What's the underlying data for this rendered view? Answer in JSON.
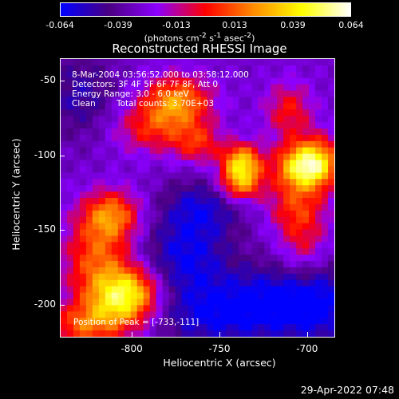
{
  "colorbar": {
    "ticks": [
      "-0.064",
      "-0.039",
      "-0.013",
      "0.013",
      "0.039",
      "0.064"
    ],
    "unit_text": "(photons cm",
    "unit_sup1": "-2",
    "unit_mid": " s",
    "unit_sup2": "-1",
    "unit_end": " asec",
    "unit_sup3": "-2",
    "unit_close": ")",
    "colors": [
      "#0000ff",
      "#4b0082",
      "#8b00ff",
      "#ff0000",
      "#ff8c00",
      "#ffff00",
      "#ffffff"
    ]
  },
  "annotations": {
    "time": "8-Mar-2004 03:56:52.000 to 03:58:12.000",
    "detectors": "Detectors: 3F 4F 5F 6F 7F 8F, Att 0",
    "energy": "Energy Range: 3.0 - 6.0 keV",
    "method": "Clean",
    "counts": "Total counts: 3.70E+03",
    "peak": "Position of Peak = [-733,-111]"
  },
  "footer": {
    "timestamp": "29-Apr-2022 07:48"
  },
  "chart_data": {
    "type": "heatmap",
    "title": "Reconstructed RHESSI Image",
    "xlabel": "Heliocentric X (arcsec)",
    "ylabel": "Heliocentric Y (arcsec)",
    "xlim": [
      -841,
      -684
    ],
    "ylim": [
      -222,
      -35
    ],
    "x_ticks": [
      -800,
      -750,
      -700
    ],
    "y_ticks": [
      -50,
      -100,
      -150,
      -200
    ],
    "zlim": [
      -0.064,
      0.064
    ],
    "peak": [
      -733,
      -111
    ],
    "sources": [
      {
        "x": -774,
        "y": -63,
        "amp": 0.05,
        "sx": 14,
        "sy": 12
      },
      {
        "x": -789,
        "y": -82,
        "amp": 0.03,
        "sx": 16,
        "sy": 12
      },
      {
        "x": -737,
        "y": -105,
        "amp": 0.064,
        "sx": 8,
        "sy": 9
      },
      {
        "x": -738,
        "y": -120,
        "amp": 0.045,
        "sx": 9,
        "sy": 8
      },
      {
        "x": -705,
        "y": -108,
        "amp": 0.058,
        "sx": 10,
        "sy": 11
      },
      {
        "x": -693,
        "y": -105,
        "amp": 0.055,
        "sx": 9,
        "sy": 12
      },
      {
        "x": -710,
        "y": -70,
        "amp": 0.03,
        "sx": 10,
        "sy": 14
      },
      {
        "x": -706,
        "y": -135,
        "amp": 0.03,
        "sx": 12,
        "sy": 12
      },
      {
        "x": -702,
        "y": -160,
        "amp": 0.025,
        "sx": 10,
        "sy": 15
      },
      {
        "x": -762,
        "y": -92,
        "amp": 0.03,
        "sx": 10,
        "sy": 10
      },
      {
        "x": -812,
        "y": -140,
        "amp": 0.045,
        "sx": 12,
        "sy": 12
      },
      {
        "x": -820,
        "y": -170,
        "amp": 0.04,
        "sx": 14,
        "sy": 20
      },
      {
        "x": -808,
        "y": -200,
        "amp": 0.05,
        "sx": 14,
        "sy": 14
      },
      {
        "x": -798,
        "y": -190,
        "amp": 0.035,
        "sx": 12,
        "sy": 12
      },
      {
        "x": -830,
        "y": -215,
        "amp": 0.035,
        "sx": 14,
        "sy": 10
      },
      {
        "x": -770,
        "y": -170,
        "amp": -0.03,
        "sx": 18,
        "sy": 20
      },
      {
        "x": -760,
        "y": -135,
        "amp": -0.025,
        "sx": 16,
        "sy": 14
      },
      {
        "x": -720,
        "y": -200,
        "amp": -0.035,
        "sx": 25,
        "sy": 18
      },
      {
        "x": -830,
        "y": -60,
        "amp": -0.02,
        "sx": 15,
        "sy": 20
      },
      {
        "x": -760,
        "y": -210,
        "amp": -0.02,
        "sx": 20,
        "sy": 14
      },
      {
        "x": -690,
        "y": -200,
        "amp": -0.02,
        "sx": 15,
        "sy": 20
      }
    ]
  }
}
